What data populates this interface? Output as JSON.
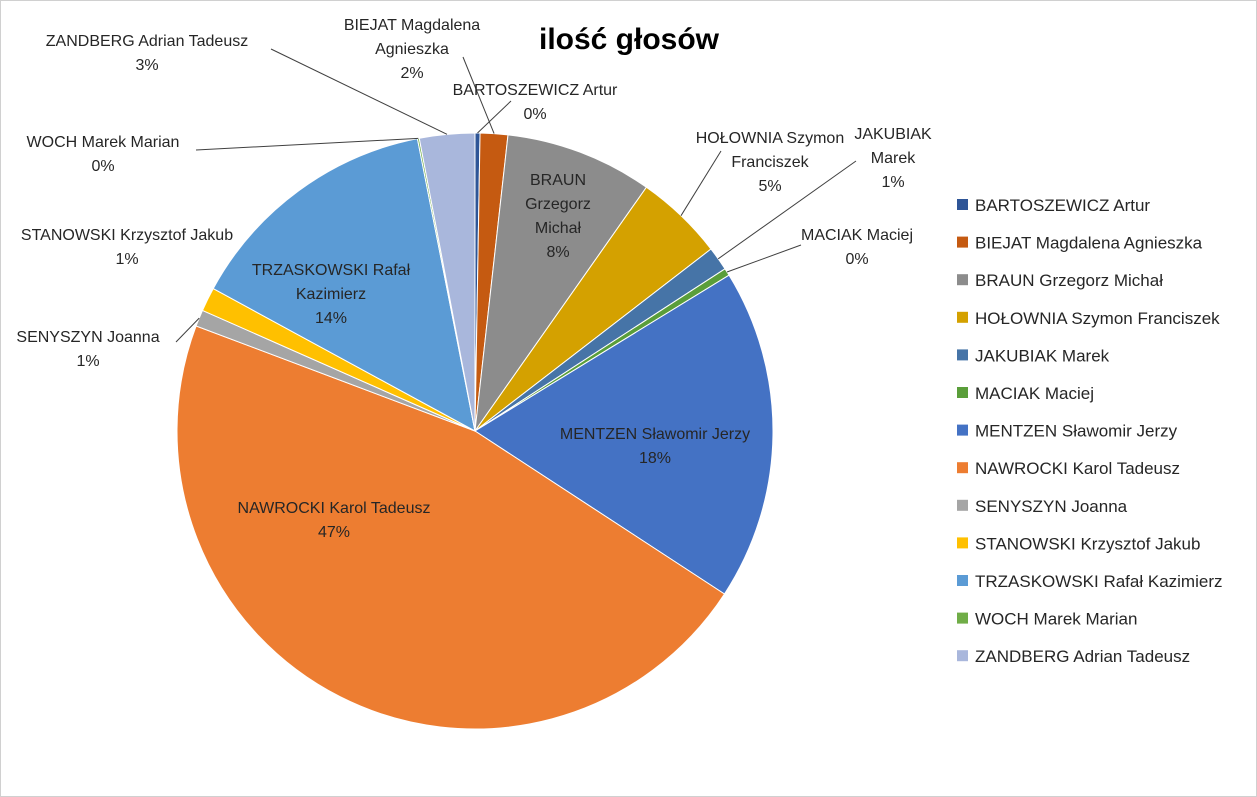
{
  "chart_data": {
    "type": "pie",
    "title": "ilość głosów",
    "legend_position": "right",
    "slices": [
      {
        "name": "BARTOSZEWICZ Artur",
        "value": 0.27,
        "label": [
          "BARTOSZEWICZ Artur",
          "0%"
        ],
        "color": "#2e5597"
      },
      {
        "name": "BIEJAT Magdalena Agnieszka",
        "value": 1.5,
        "label": [
          "BIEJAT Magdalena",
          "Agnieszka",
          "2%"
        ],
        "color": "#c55a11"
      },
      {
        "name": "BRAUN Grzegorz Michał",
        "value": 8.0,
        "label": [
          "BRAUN",
          "Grzegorz",
          "Michał",
          "8%"
        ],
        "color": "#8c8c8c"
      },
      {
        "name": "HOŁOWNIA Szymon Franciszek",
        "value": 4.8,
        "label": [
          "HOŁOWNIA Szymon",
          "Franciszek",
          "5%"
        ],
        "color": "#d4a100"
      },
      {
        "name": "JAKUBIAK Marek",
        "value": 1.3,
        "label": [
          "JAKUBIAK",
          "Marek",
          "1%"
        ],
        "color": "#4674a7"
      },
      {
        "name": "MACIAK Maciej",
        "value": 0.4,
        "label": [
          "MACIAK Maciej",
          "0%"
        ],
        "color": "#5a9e3a"
      },
      {
        "name": "MENTZEN Sławomir Jerzy",
        "value": 18.0,
        "label": [
          "MENTZEN Sławomir Jerzy",
          "18%"
        ],
        "color": "#4472c4"
      },
      {
        "name": "NAWROCKI Karol Tadeusz",
        "value": 46.6,
        "label": [
          "NAWROCKI Karol Tadeusz",
          "47%"
        ],
        "color": "#ed7d31"
      },
      {
        "name": "SENYSZYN Joanna",
        "value": 0.9,
        "label": [
          "SENYSZYN Joanna",
          "1%"
        ],
        "color": "#a5a5a5"
      },
      {
        "name": "STANOWSKI Krzysztof Jakub",
        "value": 1.3,
        "label": [
          "STANOWSKI Krzysztof Jakub",
          "1%"
        ],
        "color": "#ffc000"
      },
      {
        "name": "TRZASKOWSKI Rafał Kazimierz",
        "value": 14.0,
        "label": [
          "TRZASKOWSKI Rafał",
          "Kazimierz",
          "14%"
        ],
        "color": "#5b9bd5"
      },
      {
        "name": "WOCH Marek Marian",
        "value": 0.1,
        "label": [
          "WOCH Marek Marian",
          "0%"
        ],
        "color": "#70ad47"
      },
      {
        "name": "ZANDBERG Adrian Tadeusz",
        "value": 3.0,
        "label": [
          "ZANDBERG Adrian Tadeusz",
          "3%"
        ],
        "color": "#a9b7dc"
      }
    ]
  }
}
